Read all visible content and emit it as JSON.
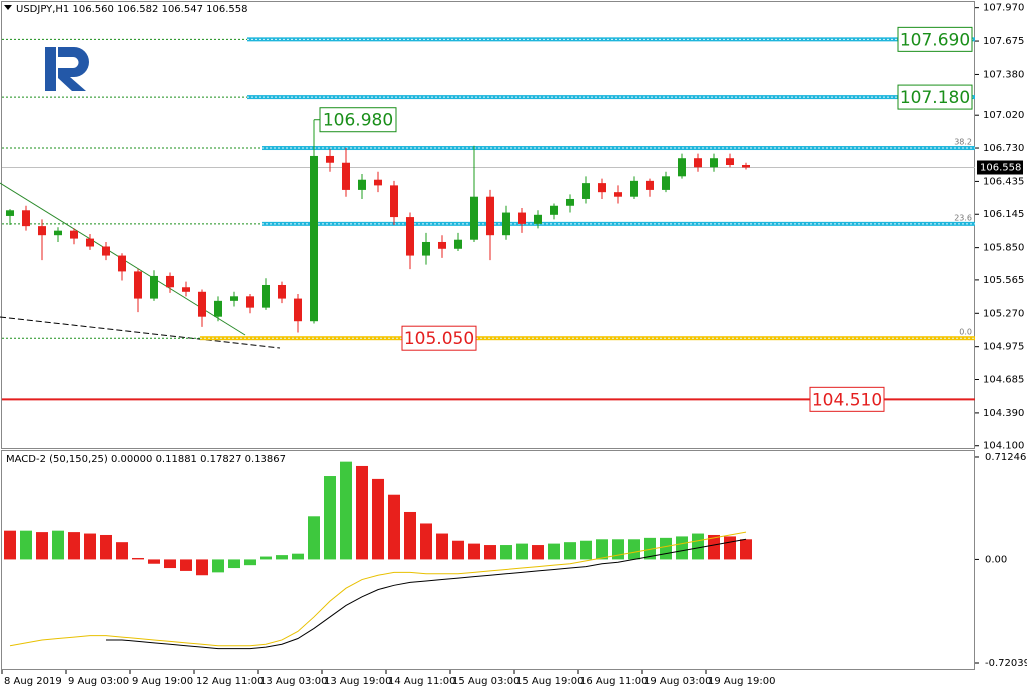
{
  "chart_data": [
    {
      "type": "candlestick",
      "title": "USDJPY,H1",
      "readout": [
        {
          "value": 106.56,
          "label": "106.560"
        },
        106.582,
        106.547,
        106.558
      ],
      "open": [
        106.13,
        106.18,
        106.04,
        105.96,
        106.0,
        105.93,
        105.86,
        105.78,
        105.64,
        105.4,
        105.6,
        105.5,
        105.46,
        105.24,
        105.38,
        105.42,
        105.32,
        105.52,
        105.4,
        105.2,
        106.66,
        106.6,
        106.36,
        106.45,
        106.4,
        106.12,
        105.78,
        105.9,
        105.84,
        105.92,
        106.3,
        105.96,
        106.16,
        106.06,
        106.14,
        106.22,
        106.28,
        106.42,
        106.34,
        106.3,
        106.44,
        106.36,
        106.48,
        106.64,
        106.56,
        106.64,
        106.58
      ],
      "high": [
        106.19,
        106.22,
        106.1,
        106.03,
        106.02,
        105.97,
        105.9,
        105.8,
        105.66,
        105.65,
        105.63,
        105.55,
        105.48,
        105.42,
        105.46,
        105.44,
        105.58,
        105.55,
        105.44,
        106.98,
        106.72,
        106.73,
        106.5,
        106.52,
        106.44,
        106.16,
        105.98,
        105.96,
        105.98,
        106.75,
        106.36,
        106.22,
        106.2,
        106.18,
        106.24,
        106.32,
        106.48,
        106.46,
        106.4,
        106.48,
        106.46,
        106.52,
        106.68,
        106.68,
        106.68,
        106.68,
        106.6
      ],
      "low": [
        106.05,
        106.0,
        105.74,
        105.9,
        105.88,
        105.83,
        105.74,
        105.56,
        105.28,
        105.38,
        105.45,
        105.42,
        105.15,
        105.2,
        105.33,
        105.27,
        105.3,
        105.36,
        105.1,
        105.18,
        106.52,
        106.3,
        106.28,
        106.34,
        106.05,
        105.66,
        105.7,
        105.76,
        105.82,
        105.9,
        105.74,
        105.92,
        105.98,
        106.02,
        106.1,
        106.16,
        106.24,
        106.28,
        106.24,
        106.28,
        106.3,
        106.34,
        106.46,
        106.52,
        106.52,
        106.56,
        106.54
      ],
      "close": [
        106.18,
        106.04,
        105.96,
        106.0,
        105.93,
        105.86,
        105.78,
        105.64,
        105.4,
        105.6,
        105.5,
        105.46,
        105.24,
        105.38,
        105.42,
        105.32,
        105.52,
        105.4,
        105.2,
        106.66,
        106.6,
        106.36,
        106.45,
        106.4,
        106.12,
        105.78,
        105.9,
        105.84,
        105.92,
        106.3,
        105.96,
        106.16,
        106.06,
        106.14,
        106.22,
        106.28,
        106.42,
        106.34,
        106.3,
        106.44,
        106.36,
        106.48,
        106.64,
        106.56,
        106.64,
        106.58,
        106.558
      ],
      "up_color": "#1e9e1e",
      "down_color": "#e8201c",
      "ylim": [
        104.08,
        108.02
      ],
      "yticks": [
        {
          "value": 107.97,
          "label": "107.970"
        },
        107.675,
        {
          "value": 107.38,
          "label": "107.380"
        },
        {
          "value": 107.02,
          "label": "107.020"
        },
        {
          "value": 106.73,
          "label": "106.730"
        },
        106.435,
        106.145,
        {
          "value": 105.85,
          "label": "105.850"
        },
        105.565,
        {
          "value": 105.27,
          "label": "105.270"
        },
        104.975,
        104.685,
        {
          "value": 104.39,
          "label": "104.390"
        },
        {
          "value": 104.1,
          "label": "104.100"
        }
      ],
      "levels": [
        {
          "value": 107.69,
          "label": "107.690",
          "color": "#1fb6dc",
          "label_color": "#1a8f1a"
        },
        {
          "value": 107.18,
          "label": "107.180",
          "color": "#1fb6dc",
          "label_color": "#1a8f1a"
        },
        {
          "value": 106.73,
          "fib": "38.2",
          "color": "#1fb6dc"
        },
        {
          "value": 106.06,
          "fib": "23.6",
          "color": "#1fb6dc"
        },
        {
          "value": 105.05,
          "label": "105.050",
          "fib": "0.0",
          "color": "#f5c400",
          "label_color": "#e41e1e"
        },
        {
          "value": 104.51,
          "label": "104.510",
          "color": "#e41e1e",
          "label_color": "#e41e1e"
        }
      ],
      "annotations": [
        {
          "value": 106.98,
          "label": "106.980",
          "color": "#1a8f1a"
        }
      ]
    },
    {
      "type": "macd",
      "title": "MACD-2 (50,150,25)",
      "readout": [
        {
          "value": 0,
          "label": "0.00000"
        },
        0.11881,
        0.17827,
        0.13867
      ],
      "categories": [
        "8 Aug 2019",
        null,
        null,
        null,
        "9 Aug 03:00",
        null,
        null,
        null,
        "9 Aug 19:00",
        null,
        null,
        null,
        "12 Aug 11:00",
        null,
        null,
        null,
        "13 Aug 03:00",
        null,
        null,
        null,
        "13 Aug 19:00",
        null,
        null,
        null,
        "14 Aug 11:00",
        null,
        null,
        null,
        "15 Aug 03:00",
        null,
        null,
        null,
        "15 Aug 19:00",
        null,
        null,
        null,
        "16 Aug 11:00",
        null,
        null,
        null,
        "19 Aug 03:00",
        null,
        null,
        null,
        "19 Aug 19:00",
        null,
        null
      ],
      "values": [
        0.2,
        0.2,
        0.19,
        0.2,
        0.19,
        0.18,
        0.17,
        0.12,
        0.01,
        -0.03,
        -0.06,
        -0.08,
        -0.11,
        -0.09,
        -0.06,
        -0.04,
        0.02,
        0.03,
        0.04,
        0.3,
        0.58,
        0.68,
        0.65,
        0.56,
        0.45,
        0.33,
        0.25,
        0.18,
        0.13,
        0.11,
        0.1,
        0.1,
        0.11,
        0.1,
        0.11,
        0.12,
        0.13,
        0.14,
        0.14,
        0.14,
        0.15,
        0.15,
        0.16,
        0.18,
        0.17,
        0.16,
        0.14
      ],
      "rising_color": "#3ec83e",
      "falling_color": "#e8201c",
      "series": [
        {
          "color": "#e8c000",
          "values": [
            -0.6,
            -0.58,
            -0.56,
            -0.55,
            -0.54,
            -0.53,
            -0.53,
            -0.54,
            -0.55,
            -0.56,
            -0.57,
            -0.58,
            -0.59,
            -0.6,
            -0.6,
            -0.6,
            -0.59,
            -0.56,
            -0.5,
            -0.4,
            -0.29,
            -0.2,
            -0.14,
            -0.11,
            -0.09,
            -0.09,
            -0.1,
            -0.1,
            -0.1,
            -0.09,
            -0.08,
            -0.07,
            -0.06,
            -0.05,
            -0.04,
            -0.03,
            -0.01,
            0.01,
            0.03,
            0.05,
            0.07,
            0.09,
            0.11,
            0.13,
            0.15,
            0.17,
            0.19
          ]
        },
        {
          "color": "#000000",
          "values": [
            null,
            null,
            null,
            null,
            null,
            null,
            -0.56,
            -0.56,
            -0.57,
            -0.58,
            -0.59,
            -0.6,
            -0.61,
            -0.62,
            -0.62,
            -0.62,
            -0.61,
            -0.59,
            -0.55,
            -0.48,
            -0.4,
            -0.32,
            -0.26,
            -0.21,
            -0.18,
            -0.16,
            -0.15,
            -0.14,
            -0.13,
            -0.12,
            -0.11,
            -0.1,
            -0.09,
            -0.08,
            -0.07,
            -0.06,
            -0.05,
            -0.03,
            -0.02,
            0.0,
            0.02,
            0.04,
            0.06,
            0.08,
            0.1,
            0.12,
            0.14
          ]
        }
      ],
      "ylim": [
        -0.769,
        0.761
      ],
      "yticks": [
        0.71246,
        {
          "value": 0,
          "label": "0.00"
        },
        -0.72039
      ]
    }
  ]
}
